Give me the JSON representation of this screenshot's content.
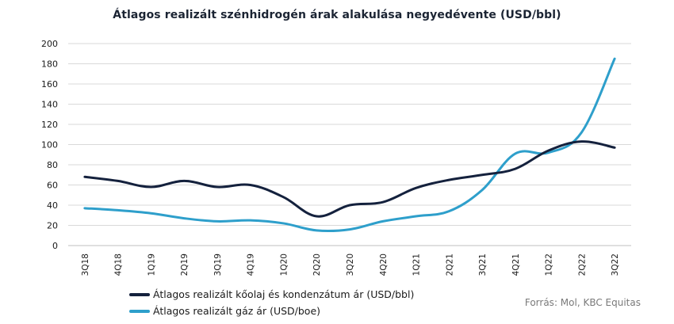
{
  "chart_data": {
    "type": "line",
    "title": "Átlagos realizált szénhidrogén árak alakulása negyedévente  (USD/bbl)",
    "categories": [
      "3Q18",
      "4Q18",
      "1Q19",
      "2Q19",
      "3Q19",
      "4Q19",
      "1Q20",
      "2Q20",
      "3Q20",
      "4Q20",
      "1Q21",
      "2Q21",
      "3Q21",
      "4Q21",
      "1Q22",
      "2Q22",
      "3Q22"
    ],
    "ylim": [
      0,
      200
    ],
    "yticks": [
      "0",
      "20",
      "40",
      "60",
      "80",
      "100",
      "120",
      "140",
      "160",
      "180",
      "200"
    ],
    "grid": true,
    "legend_position": "bottom-left",
    "series": [
      {
        "name": "Átlagos realizált kőolaj és kondenzátum ár (USD/bbl)",
        "color": "#14213d",
        "values": [
          68,
          64,
          58,
          64,
          58,
          60,
          48,
          29,
          40,
          43,
          57,
          65,
          70,
          76,
          94,
          103,
          97
        ]
      },
      {
        "name": "Átlagos realizált gáz ár (USD/boe)",
        "color": "#2e9fcb",
        "values": [
          37,
          35,
          32,
          27,
          24,
          25,
          22,
          15,
          16,
          24,
          29,
          34,
          55,
          91,
          92,
          112,
          185
        ]
      }
    ]
  },
  "source": "Forrás: Mol, KBC Equitas"
}
